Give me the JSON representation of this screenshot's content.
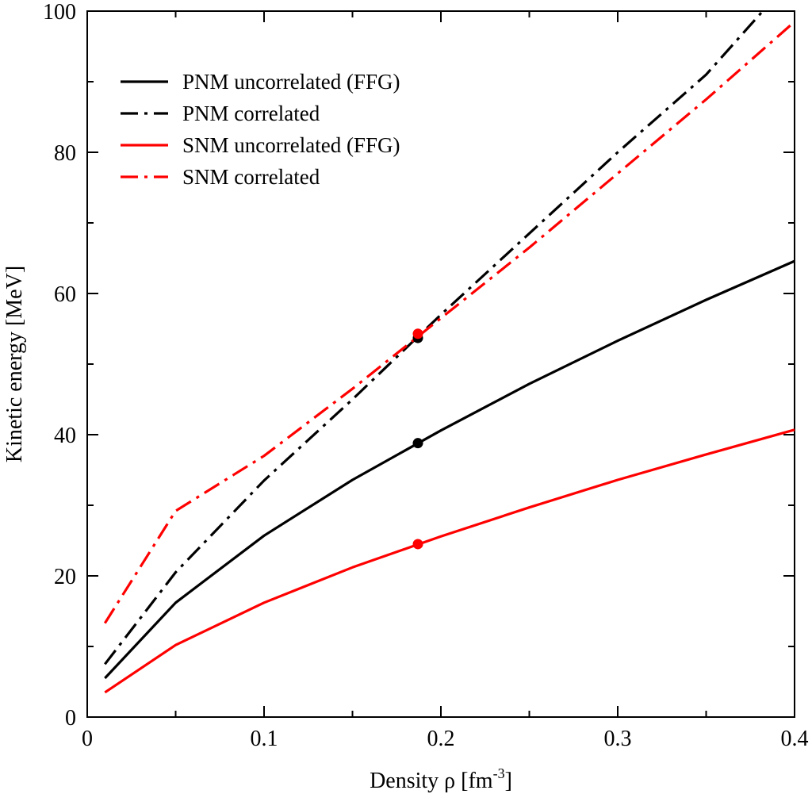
{
  "chart_data": {
    "type": "line",
    "xlabel": "Density ρ [fm",
    "xlabel_sup": "-3",
    "xlabel_end": "]",
    "ylabel": "Kinetic energy [MeV]",
    "xlim": [
      0,
      0.4
    ],
    "ylim": [
      0,
      100
    ],
    "xticks": [
      0,
      0.1,
      0.2,
      0.3,
      0.4
    ],
    "xtick_labels": [
      "0",
      "0.1",
      "0.2",
      "0.3",
      "0.4"
    ],
    "yticks": [
      0,
      20,
      40,
      60,
      80,
      100
    ],
    "ytick_labels": [
      "0",
      "20",
      "40",
      "60",
      "80",
      "100"
    ],
    "grid": false,
    "legend_position": "top-left",
    "series": [
      {
        "name": "PNM uncorrelated (FFG)",
        "color": "#000000",
        "style": "solid",
        "x": [
          0.01,
          0.05,
          0.1,
          0.15,
          0.2,
          0.25,
          0.3,
          0.35,
          0.4
        ],
        "y": [
          5.5,
          16.2,
          25.7,
          33.6,
          40.6,
          47.2,
          53.3,
          59.1,
          64.6
        ]
      },
      {
        "name": "PNM correlated",
        "color": "#000000",
        "style": "dashdot",
        "x": [
          0.01,
          0.05,
          0.1,
          0.15,
          0.2,
          0.25,
          0.3,
          0.35,
          0.382
        ],
        "y": [
          7.5,
          20.5,
          33.5,
          45.0,
          57.0,
          68.5,
          80.0,
          91.0,
          100.0
        ]
      },
      {
        "name": "SNM uncorrelated (FFG)",
        "color": "#ff0000",
        "style": "solid",
        "x": [
          0.01,
          0.05,
          0.1,
          0.15,
          0.2,
          0.25,
          0.3,
          0.35,
          0.4
        ],
        "y": [
          3.5,
          10.2,
          16.2,
          21.2,
          25.6,
          29.7,
          33.6,
          37.2,
          40.7
        ]
      },
      {
        "name": "SNM correlated",
        "color": "#ff0000",
        "style": "dashdot",
        "x": [
          0.01,
          0.05,
          0.1,
          0.15,
          0.2,
          0.25,
          0.3,
          0.35,
          0.4
        ],
        "y": [
          13.3,
          29.2,
          37.0,
          46.5,
          56.5,
          66.5,
          77.0,
          87.5,
          98.5
        ]
      }
    ],
    "markers": [
      {
        "series": "PNM correlated",
        "color": "#000000",
        "x": 0.187,
        "y": 53.7
      },
      {
        "series": "SNM correlated",
        "color": "#ff0000",
        "x": 0.187,
        "y": 54.3
      },
      {
        "series": "PNM uncorrelated (FFG)",
        "color": "#000000",
        "x": 0.187,
        "y": 38.8
      },
      {
        "series": "SNM uncorrelated (FFG)",
        "color": "#ff0000",
        "x": 0.187,
        "y": 24.5
      }
    ]
  }
}
